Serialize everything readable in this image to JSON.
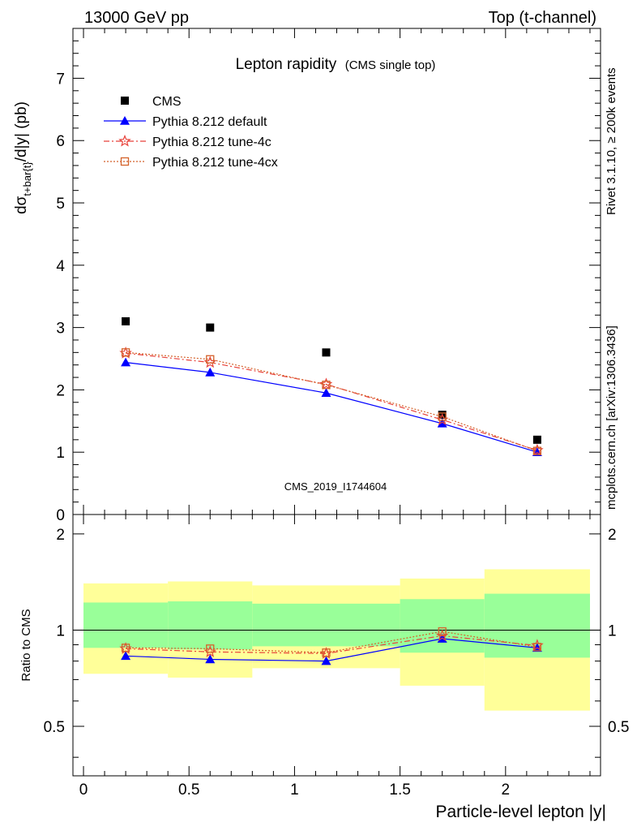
{
  "header": {
    "left": "13000 GeV pp",
    "right": "Top (t-channel)"
  },
  "side_text": {
    "rivet": "Rivet 3.1.10, ≥ 200k events",
    "mcplots": "mcplots.cern.ch [arXiv:1306.3436]"
  },
  "watermark": "CMS_2019_I1744604",
  "chart_data": [
    {
      "type": "scatter",
      "title": "Lepton rapidity",
      "subtitle": "(CMS single top)",
      "xlabel": "",
      "ylabel": "dσt+bar{t}/d|y|  (pb)",
      "ylabel_parts": {
        "main": "dσ",
        "sub": "t+bar{t}",
        "rest": "/d|y|  (pb)"
      },
      "xlim": [
        -0.05,
        2.45
      ],
      "ylim": [
        0,
        7.8
      ],
      "yticks": [
        "0",
        "1",
        "2",
        "3",
        "4",
        "5",
        "6",
        "7"
      ],
      "legend_position": "top-left",
      "colors": {
        "default": "#0000ff",
        "tune4c": "#e8423a",
        "tune4cx": "#d4622a"
      },
      "series": [
        {
          "name": "CMS",
          "x": [
            0.2,
            0.6,
            1.15,
            1.7,
            2.15
          ],
          "y": [
            3.1,
            3.0,
            2.6,
            1.6,
            1.2
          ]
        },
        {
          "name": "Pythia 8.212 default",
          "x": [
            0.2,
            0.6,
            1.15,
            1.7,
            2.15
          ],
          "y": [
            2.44,
            2.28,
            1.95,
            1.46,
            1.0
          ]
        },
        {
          "name": "Pythia 8.212 tune-4c",
          "x": [
            0.2,
            0.6,
            1.15,
            1.7,
            2.15
          ],
          "y": [
            2.59,
            2.44,
            2.09,
            1.52,
            1.03
          ]
        },
        {
          "name": "Pythia 8.212 tune-4cx",
          "x": [
            0.2,
            0.6,
            1.15,
            1.7,
            2.15
          ],
          "y": [
            2.6,
            2.49,
            2.08,
            1.57,
            1.02
          ]
        }
      ]
    },
    {
      "type": "line",
      "title": "",
      "xlabel": "Particle-level lepton |y|",
      "ylabel": "Ratio to CMS",
      "xlim": [
        -0.05,
        2.45
      ],
      "ylim": [
        0.35,
        2.3
      ],
      "xticks": [
        "0",
        "0.5",
        "1",
        "1.5",
        "2"
      ],
      "yticks": [
        "0.5",
        "1",
        "2"
      ],
      "colors": {
        "band_outer": "#ffff99",
        "band_inner": "#99ff99"
      },
      "bands": {
        "x_edges": [
          0.0,
          0.4,
          0.8,
          1.5,
          1.9,
          2.4
        ],
        "outer_low": [
          0.73,
          0.71,
          0.76,
          0.67,
          0.56
        ],
        "outer_high": [
          1.4,
          1.42,
          1.38,
          1.45,
          1.55
        ],
        "inner_low": [
          0.88,
          0.87,
          0.89,
          0.85,
          0.82
        ],
        "inner_high": [
          1.22,
          1.23,
          1.21,
          1.25,
          1.3
        ]
      },
      "series": [
        {
          "name": "Pythia 8.212 default",
          "x": [
            0.2,
            0.6,
            1.15,
            1.7,
            2.15
          ],
          "y": [
            0.83,
            0.81,
            0.8,
            0.94,
            0.88
          ]
        },
        {
          "name": "Pythia 8.212 tune-4c",
          "x": [
            0.2,
            0.6,
            1.15,
            1.7,
            2.15
          ],
          "y": [
            0.875,
            0.855,
            0.845,
            0.96,
            0.895
          ]
        },
        {
          "name": "Pythia 8.212 tune-4cx",
          "x": [
            0.2,
            0.6,
            1.15,
            1.7,
            2.15
          ],
          "y": [
            0.88,
            0.875,
            0.85,
            0.99,
            0.885
          ]
        }
      ]
    }
  ]
}
